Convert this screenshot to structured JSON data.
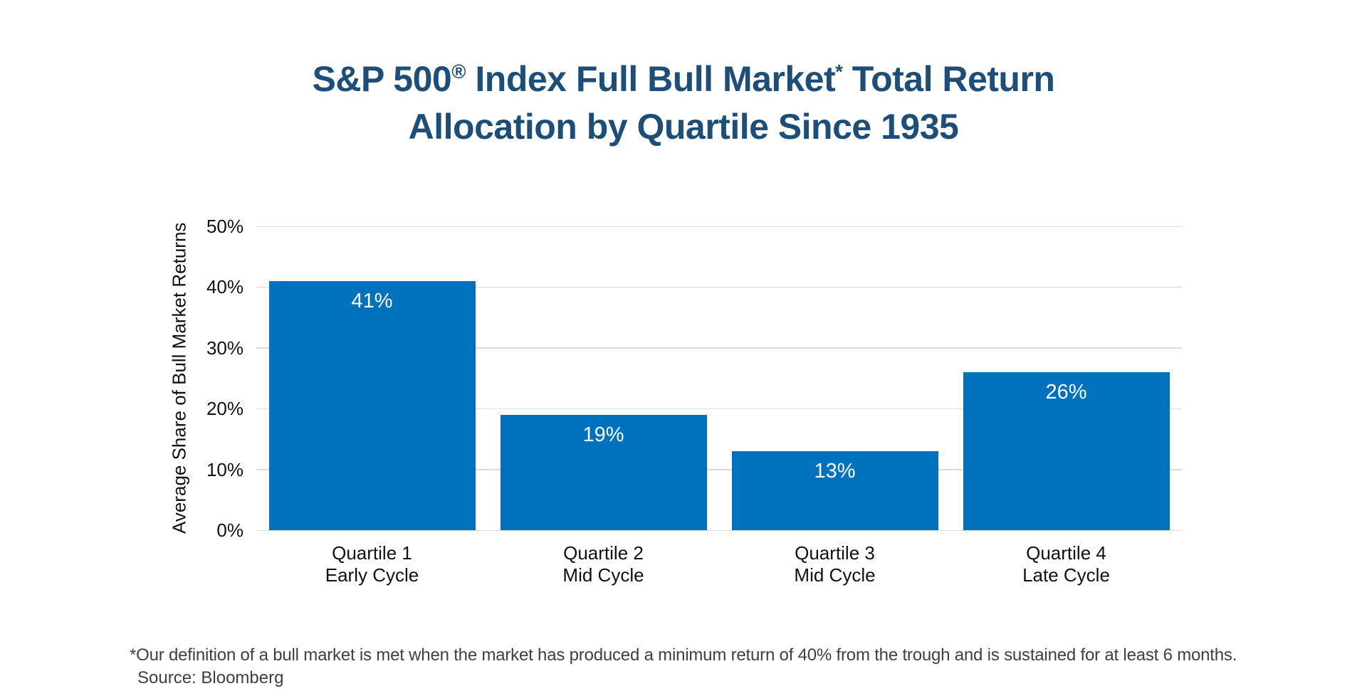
{
  "title": {
    "line1": {
      "prefix": "S&P 500",
      "registered": "®",
      "middle": " Index Full Bull Market",
      "asterisk": "*",
      "suffix": " Total Return"
    },
    "line2": "Allocation by Quartile Since 1935",
    "color": "#1C4E79"
  },
  "chart_data": {
    "type": "bar",
    "title": "S&P 500® Index Full Bull Market* Total Return Allocation by Quartile Since 1935",
    "xlabel": "",
    "ylabel": "Average Share of Bull Market Returns",
    "ylim": [
      0,
      50
    ],
    "ytick_values": [
      0,
      10,
      20,
      30,
      40,
      50
    ],
    "ytick_labels": [
      "0%",
      "10%",
      "20%",
      "30%",
      "40%",
      "50%"
    ],
    "grid": true,
    "legend": false,
    "categories": [
      "Quartile 1",
      "Quartile 2",
      "Quartile 3",
      "Quartile 4"
    ],
    "category_sublabels": [
      "Early Cycle",
      "Mid Cycle",
      "Mid Cycle",
      "Late Cycle"
    ],
    "values": [
      41,
      19,
      13,
      26
    ],
    "value_labels": [
      "41%",
      "19%",
      "13%",
      "26%"
    ],
    "bar_color": "#0071BC",
    "value_label_color": "#FFFFFF"
  },
  "footnote": {
    "line1": "*Our definition of a bull market is met when the market has produced a minimum return of 40% from the trough and is sustained for at least 6 months.",
    "line2": "Source: Bloomberg"
  },
  "colors": {
    "title": "#1C4E79",
    "bar": "#0071BC",
    "gridline": "#DCDCDC",
    "axis_text": "#111111",
    "footnote_text": "#3F3F3F",
    "background": "#FFFFFF"
  }
}
